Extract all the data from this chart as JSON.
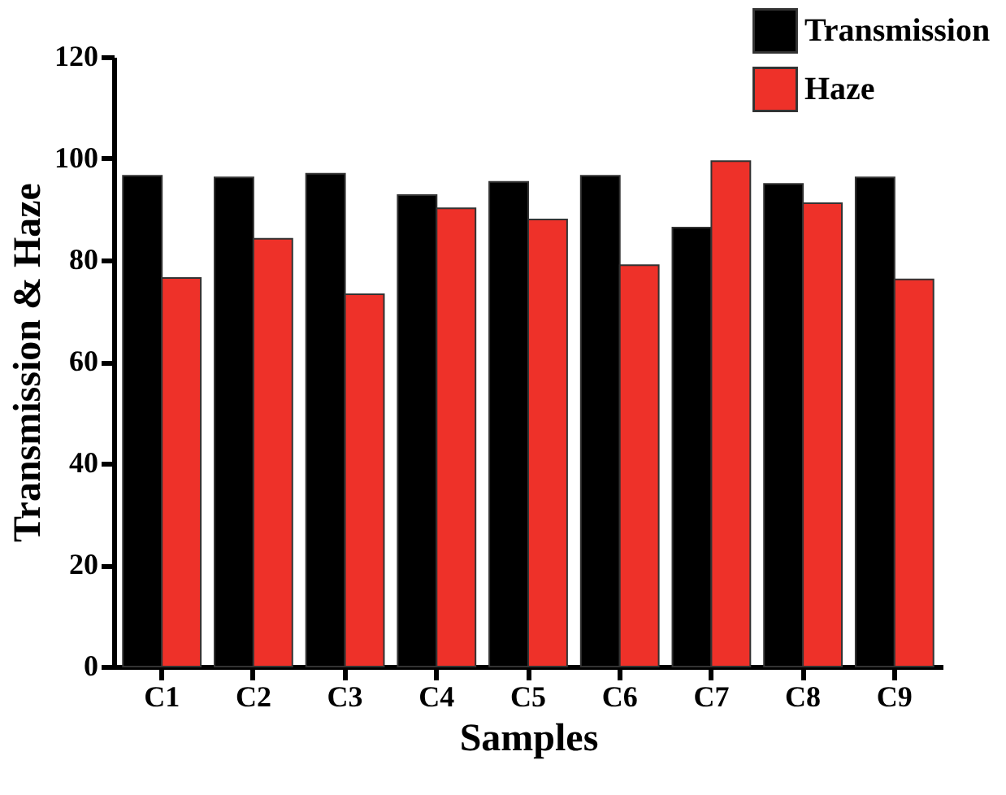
{
  "chart_data": {
    "type": "bar",
    "xlabel": "Samples",
    "ylabel": "Transmission & Haze",
    "categories": [
      "C1",
      "C2",
      "C3",
      "C4",
      "C5",
      "C6",
      "C7",
      "C8",
      "C9"
    ],
    "series": [
      {
        "name": "Transmission",
        "color": "#000000",
        "values": [
          96.6,
          96.3,
          97.0,
          92.8,
          95.4,
          96.6,
          86.4,
          95.0,
          96.3
        ]
      },
      {
        "name": "Haze",
        "color": "#ee3129",
        "values": [
          76.5,
          84.2,
          73.3,
          90.2,
          88.0,
          79.0,
          99.5,
          91.2,
          76.2
        ]
      }
    ],
    "ylim": [
      0,
      120
    ],
    "yticks": [
      0,
      20,
      40,
      60,
      80,
      100,
      120
    ],
    "grid": false,
    "legend": "top right"
  }
}
